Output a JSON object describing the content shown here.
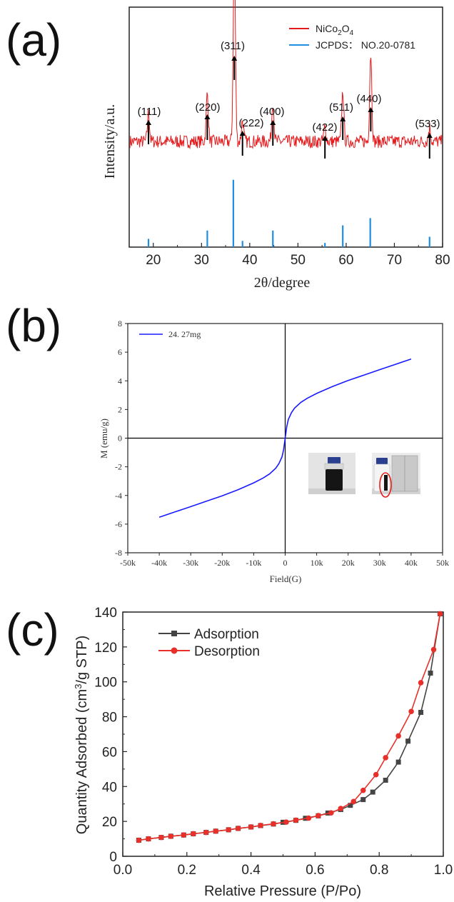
{
  "panels": {
    "a": {
      "label": "(a)"
    },
    "b": {
      "label": "(b)"
    },
    "c": {
      "label": "(c)"
    }
  },
  "chart_data": [
    {
      "type": "line",
      "id": "a",
      "xlabel": "2θ/degree",
      "ylabel": "Intensity/a.u.",
      "xlim": [
        15,
        80
      ],
      "xticks": [
        "20",
        "30",
        "40",
        "50",
        "60",
        "70",
        "80"
      ],
      "series": [
        {
          "name": "NiCo2O4",
          "color": "#e41a1c",
          "kind": "noisy-xrd",
          "baseline": 0.44,
          "peaks": [
            {
              "x": 19.0,
              "h": 0.12
            },
            {
              "x": 31.2,
              "h": 0.2
            },
            {
              "x": 36.8,
              "h": 0.82
            },
            {
              "x": 38.5,
              "h": 0.09
            },
            {
              "x": 44.8,
              "h": 0.17
            },
            {
              "x": 55.6,
              "h": 0.06
            },
            {
              "x": 59.3,
              "h": 0.21
            },
            {
              "x": 65.1,
              "h": 0.37
            },
            {
              "x": 77.3,
              "h": 0.06
            }
          ]
        },
        {
          "name": "JCPDS： NO.20-0781",
          "color": "#1f8ee0",
          "kind": "stick",
          "sticks": [
            {
              "x": 19.0,
              "h": 0.08
            },
            {
              "x": 31.2,
              "h": 0.16
            },
            {
              "x": 36.6,
              "h": 0.65
            },
            {
              "x": 38.5,
              "h": 0.06
            },
            {
              "x": 44.8,
              "h": 0.16
            },
            {
              "x": 55.6,
              "h": 0.04
            },
            {
              "x": 59.3,
              "h": 0.21
            },
            {
              "x": 65.0,
              "h": 0.28
            },
            {
              "x": 77.3,
              "h": 0.1
            }
          ]
        }
      ],
      "annotations": [
        {
          "text": "(111)",
          "x": 19.0
        },
        {
          "text": "(220)",
          "x": 31.2
        },
        {
          "text": "(311)",
          "x": 36.8
        },
        {
          "text": "(222)",
          "x": 38.5
        },
        {
          "text": "(400)",
          "x": 44.8
        },
        {
          "text": "(422)",
          "x": 55.6
        },
        {
          "text": "(511)",
          "x": 59.3
        },
        {
          "text": "(440)",
          "x": 65.1
        },
        {
          "text": "(533)",
          "x": 77.3
        }
      ],
      "legend": "top-right"
    },
    {
      "type": "line",
      "id": "b",
      "xlabel": "Field(G)",
      "ylabel": "M (emu/g)",
      "xlim": [
        -50000,
        50000
      ],
      "ylim": [
        -8,
        8
      ],
      "xticks": [
        "-50k",
        "-40k",
        "-30k",
        "-20k",
        "-10k",
        "0",
        "10k",
        "20k",
        "30k",
        "40k",
        "50k"
      ],
      "yticks": [
        "8",
        "6",
        "4",
        "2",
        "0",
        "-2",
        "-4",
        "-6",
        "-8"
      ],
      "series": [
        {
          "name": "24. 27mg",
          "color": "#1a1aff",
          "x": [
            -40000,
            -35000,
            -30000,
            -25000,
            -20000,
            -15000,
            -10000,
            -7000,
            -5000,
            -3000,
            -2000,
            -1000,
            -500,
            0,
            500,
            1000,
            2000,
            3000,
            5000,
            7000,
            10000,
            15000,
            20000,
            25000,
            30000,
            35000,
            40000
          ],
          "y": [
            -5.52,
            -5.15,
            -4.78,
            -4.4,
            -4.02,
            -3.6,
            -3.12,
            -2.78,
            -2.5,
            -2.1,
            -1.78,
            -1.3,
            -0.8,
            0.0,
            0.8,
            1.3,
            1.78,
            2.1,
            2.5,
            2.78,
            3.12,
            3.6,
            4.02,
            4.4,
            4.78,
            5.15,
            5.52
          ]
        }
      ],
      "legend": "top-left",
      "inset": "vial photos"
    },
    {
      "type": "line",
      "id": "c",
      "xlabel": "Relative Pressure (P/Po)",
      "ylabel": "Quantity Adsorbed (cm3/g  STP)",
      "xlim": [
        0.0,
        1.0
      ],
      "ylim": [
        0,
        140
      ],
      "xticks": [
        "0.0",
        "0.2",
        "0.4",
        "0.6",
        "0.8",
        "1.0"
      ],
      "yticks": [
        "0",
        "20",
        "40",
        "60",
        "80",
        "100",
        "120",
        "140"
      ],
      "series": [
        {
          "name": "Adsorption",
          "color": "#444444",
          "marker": "square",
          "x": [
            0.05,
            0.08,
            0.12,
            0.15,
            0.19,
            0.22,
            0.26,
            0.29,
            0.33,
            0.36,
            0.4,
            0.43,
            0.47,
            0.5,
            0.54,
            0.57,
            0.61,
            0.64,
            0.68,
            0.71,
            0.75,
            0.78,
            0.82,
            0.86,
            0.89,
            0.93,
            0.96,
            0.99
          ],
          "y": [
            9.2,
            10.0,
            10.8,
            11.5,
            12.2,
            12.9,
            13.7,
            14.4,
            15.2,
            16.0,
            16.8,
            17.6,
            18.5,
            19.5,
            20.6,
            21.8,
            23.2,
            24.8,
            26.8,
            29.2,
            32.5,
            36.8,
            43.6,
            54.0,
            66.0,
            82.5,
            105.0,
            139.0
          ]
        },
        {
          "name": "Desorption",
          "color": "#e8302b",
          "marker": "circle",
          "x": [
            0.99,
            0.97,
            0.93,
            0.9,
            0.86,
            0.82,
            0.79,
            0.75,
            0.72,
            0.68,
            0.65,
            0.61,
            0.58,
            0.54,
            0.51,
            0.47,
            0.43,
            0.4,
            0.36,
            0.33,
            0.29,
            0.26,
            0.22,
            0.19,
            0.15,
            0.12,
            0.08,
            0.05
          ],
          "y": [
            139.0,
            118.5,
            99.5,
            83.0,
            69.0,
            56.5,
            46.8,
            37.8,
            31.4,
            27.4,
            24.9,
            23.3,
            21.9,
            20.7,
            19.6,
            18.6,
            17.7,
            16.8,
            16.0,
            15.2,
            14.4,
            13.7,
            12.9,
            12.2,
            11.5,
            10.8,
            10.0,
            9.2
          ]
        }
      ],
      "legend": "top-left"
    }
  ]
}
